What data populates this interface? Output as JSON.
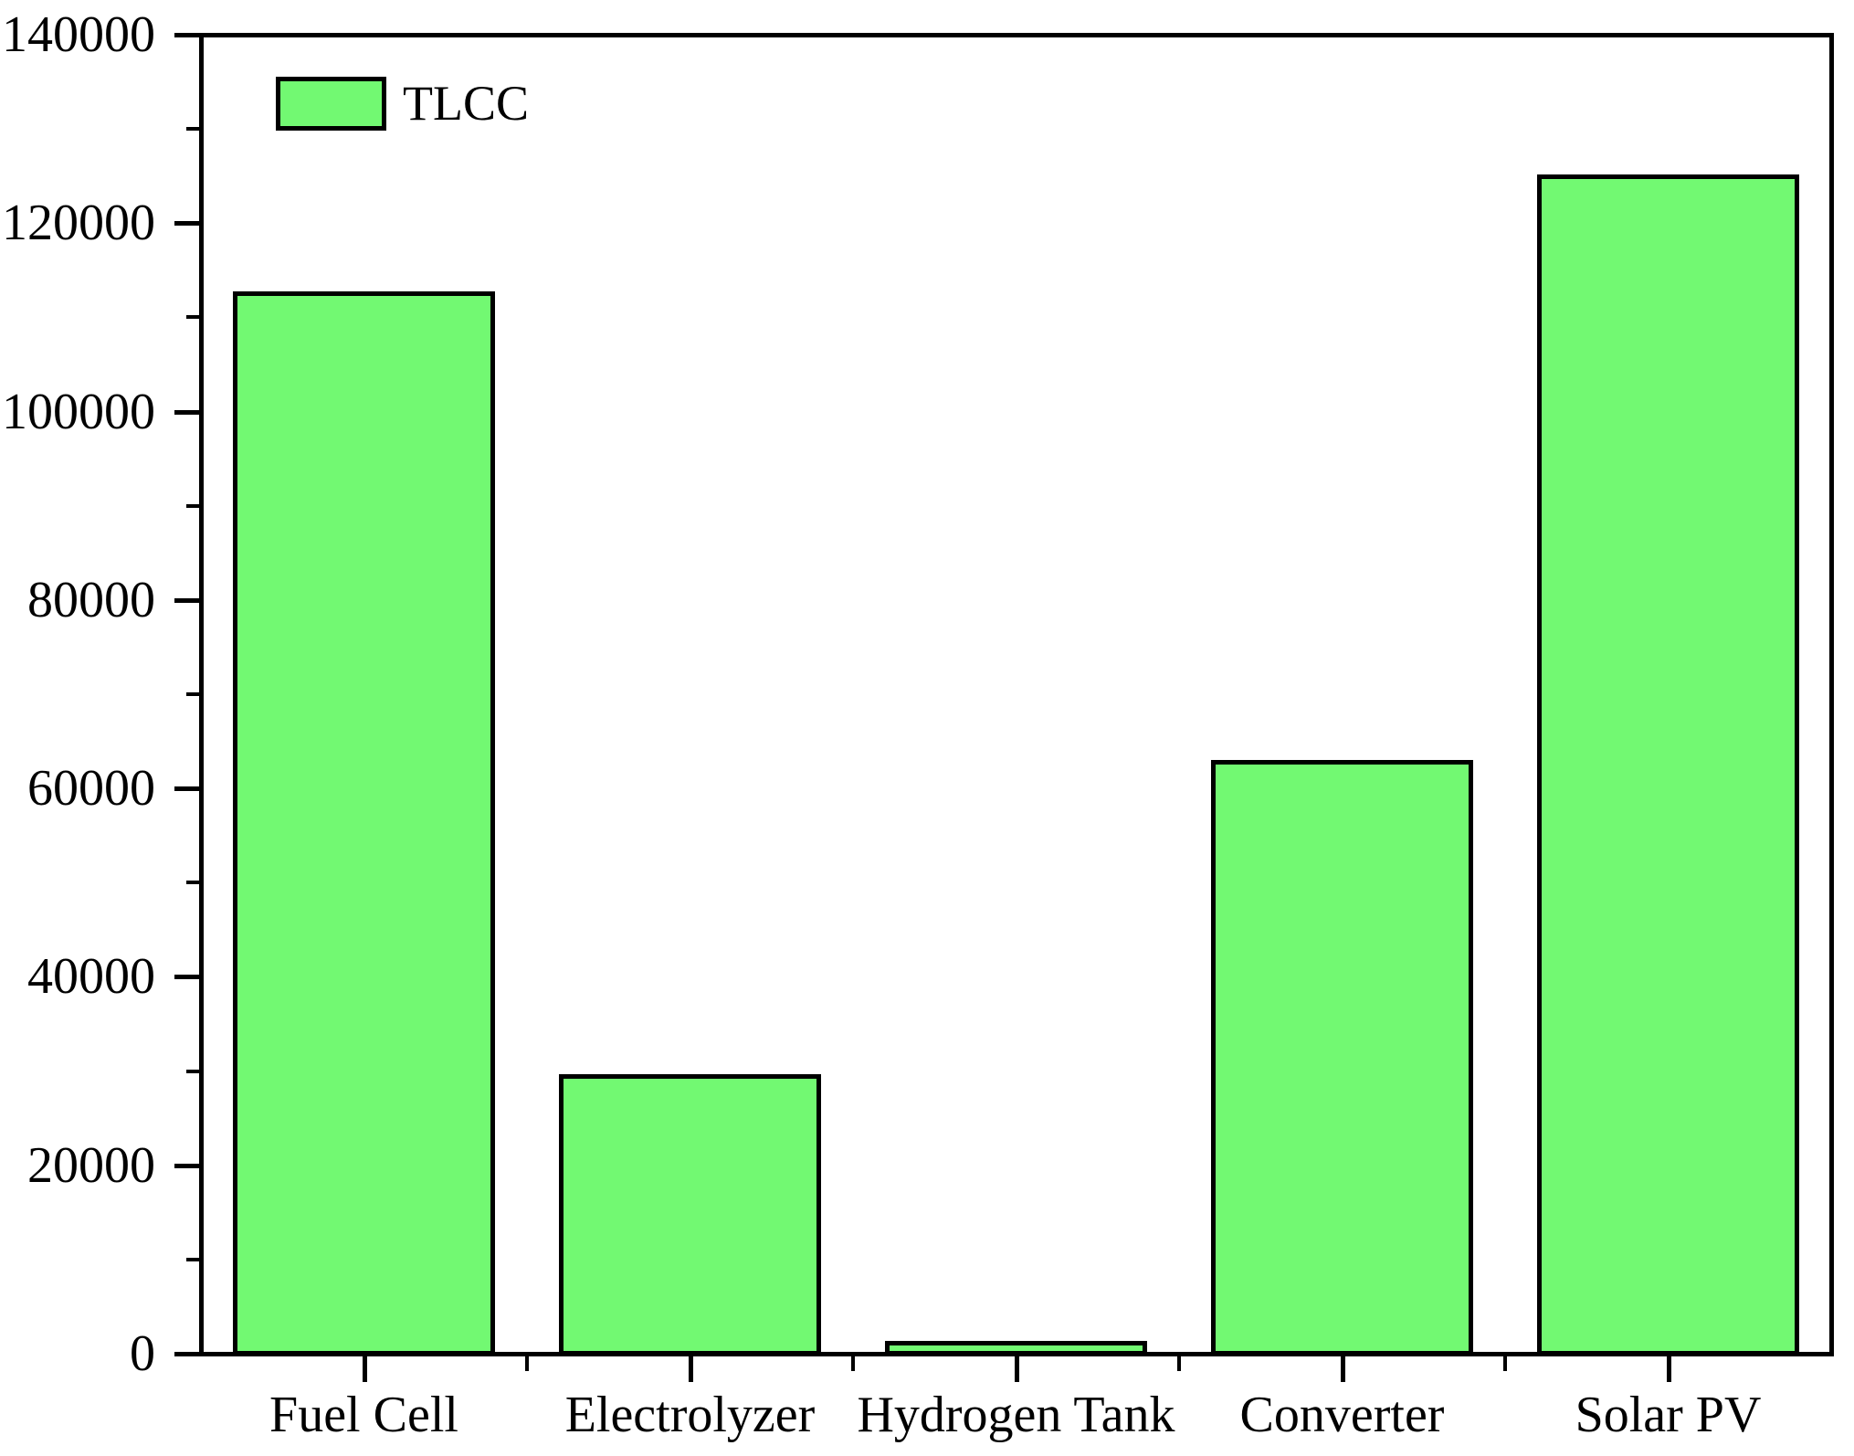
{
  "chart_data": {
    "type": "bar",
    "title": "",
    "xlabel": "",
    "ylabel": "",
    "categories": [
      "Fuel Cell",
      "Electrolyzer",
      "Hydrogen Tank",
      "Converter",
      "Solar PV"
    ],
    "series": [
      {
        "name": "TLCC",
        "values": [
          112800,
          29700,
          1000,
          63000,
          125200
        ]
      }
    ],
    "ylim": [
      0,
      140000
    ],
    "ytick_step": 20000,
    "minor_ytick_step": 10000,
    "ytick_labels": [
      "0",
      "20000",
      "40000",
      "60000",
      "80000",
      "100000",
      "120000",
      "140000"
    ],
    "grid": false,
    "legend": {
      "position": "top-left",
      "entries": [
        {
          "label": "TLCC",
          "color": "#72f972"
        }
      ]
    },
    "colors": {
      "bar_fill": "#72f972",
      "bar_border": "#000000",
      "axis": "#000000",
      "text": "#000000",
      "background": "#ffffff"
    }
  }
}
